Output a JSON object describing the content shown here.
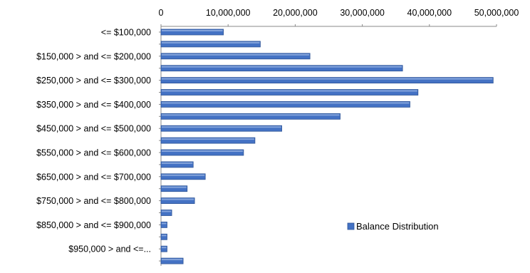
{
  "colors": {
    "bar_fill": "#4472c4",
    "bar_stroke": "#2f5597",
    "axis": "#888888"
  },
  "chart_data": {
    "type": "bar",
    "orientation": "horizontal",
    "title": "",
    "xlabel": "",
    "ylabel": "",
    "xlim": [
      0,
      50000000
    ],
    "x_ticks": [
      "0",
      "10,000,000",
      "20,000,000",
      "30,000,000",
      "40,000,000",
      "50,000,000"
    ],
    "x_axis_position": "top",
    "grid": false,
    "legend_position": "bottom-right",
    "categories": [
      "<= $100,000",
      "",
      "$150,000 > and <= $200,000",
      "",
      "$250,000 > and <= $300,000",
      "",
      "$350,000 > and <= $400,000",
      "",
      "$450,000 > and <= $500,000",
      "",
      "$550,000 > and <= $600,000",
      "",
      "$650,000 > and <= $700,000",
      "",
      "$750,000 > and <= $800,000",
      "",
      "$850,000 > and <= $900,000",
      "",
      "$950,000 > and <=...",
      ""
    ],
    "series": [
      {
        "name": "Balance Distribution",
        "values": [
          9300000,
          14800000,
          22200000,
          36000000,
          49500000,
          38300000,
          37100000,
          26700000,
          18000000,
          14000000,
          12300000,
          4800000,
          6600000,
          3900000,
          5000000,
          1600000,
          900000,
          900000,
          900000,
          3300000
        ]
      }
    ]
  }
}
